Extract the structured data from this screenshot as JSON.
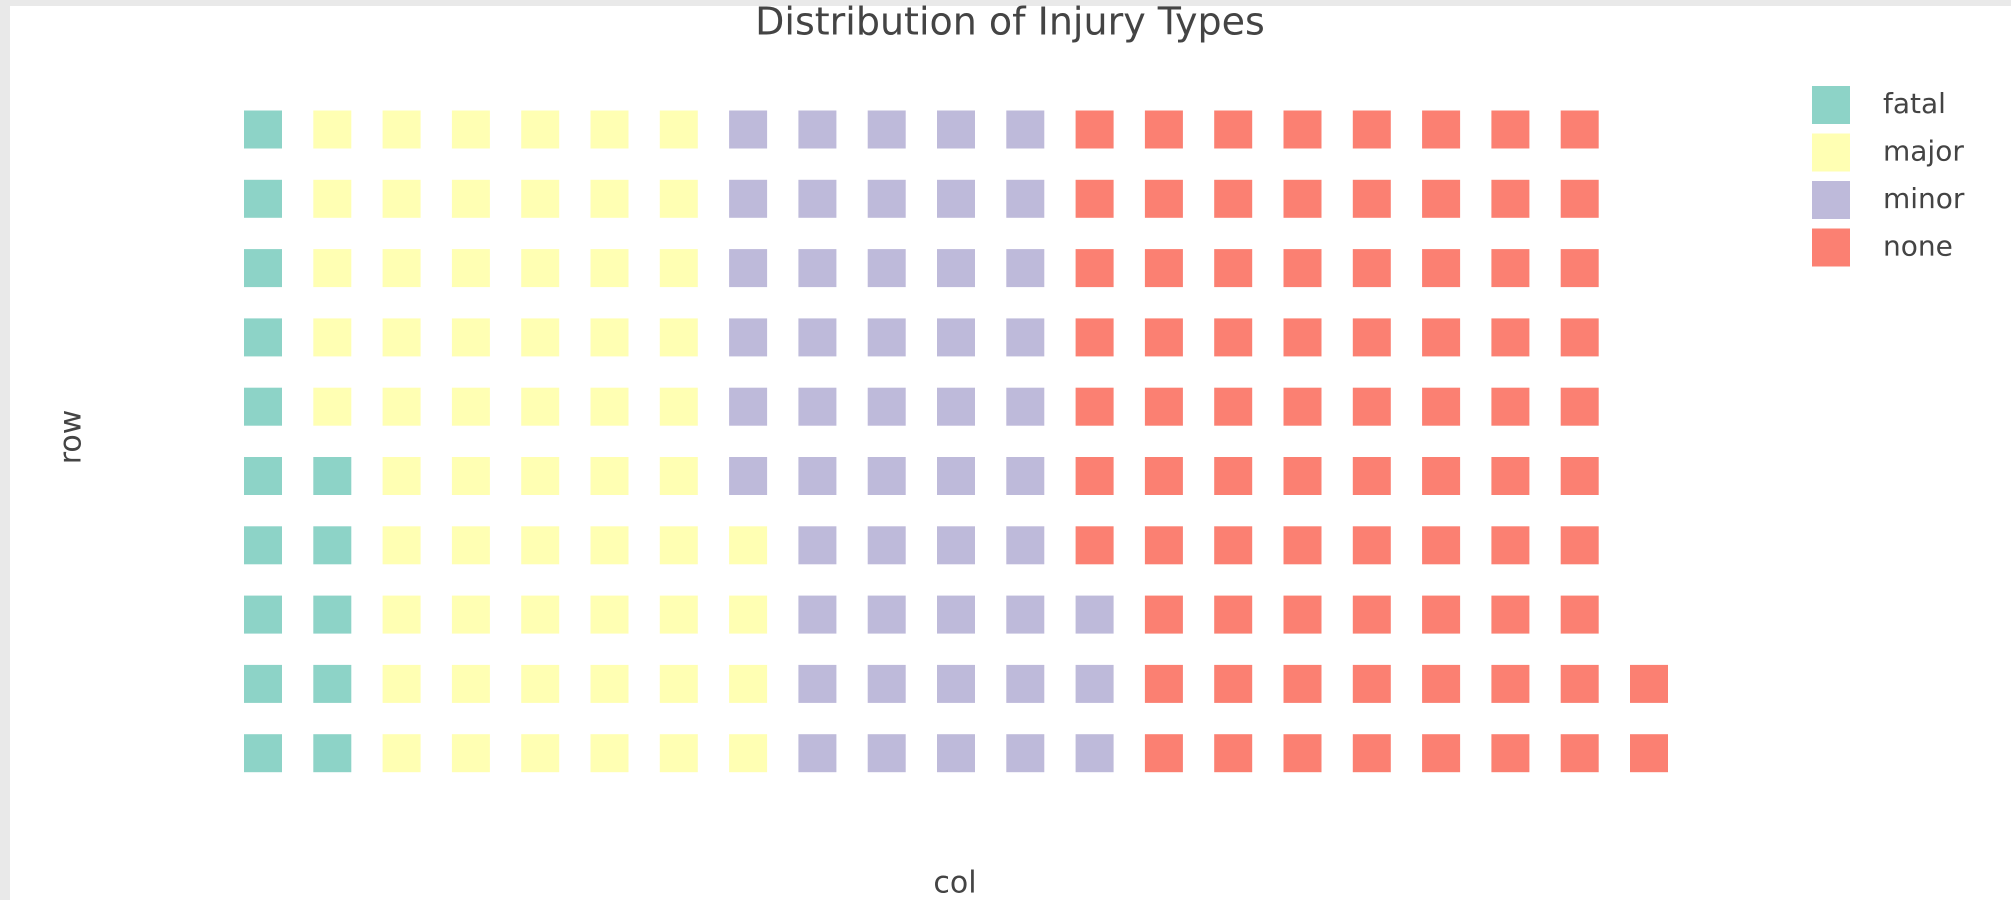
{
  "chart_data": {
    "type": "waffle",
    "title": "Distribution of Injury Types",
    "x_label": "col",
    "y_label": "row",
    "rows": 10,
    "categories": [
      "fatal",
      "major",
      "minor",
      "none"
    ],
    "values": [
      15,
      59,
      49,
      79
    ],
    "colors": [
      "#8dd3c7",
      "#ffffb3",
      "#bebada",
      "#fb8072"
    ],
    "legend": "top-right"
  }
}
